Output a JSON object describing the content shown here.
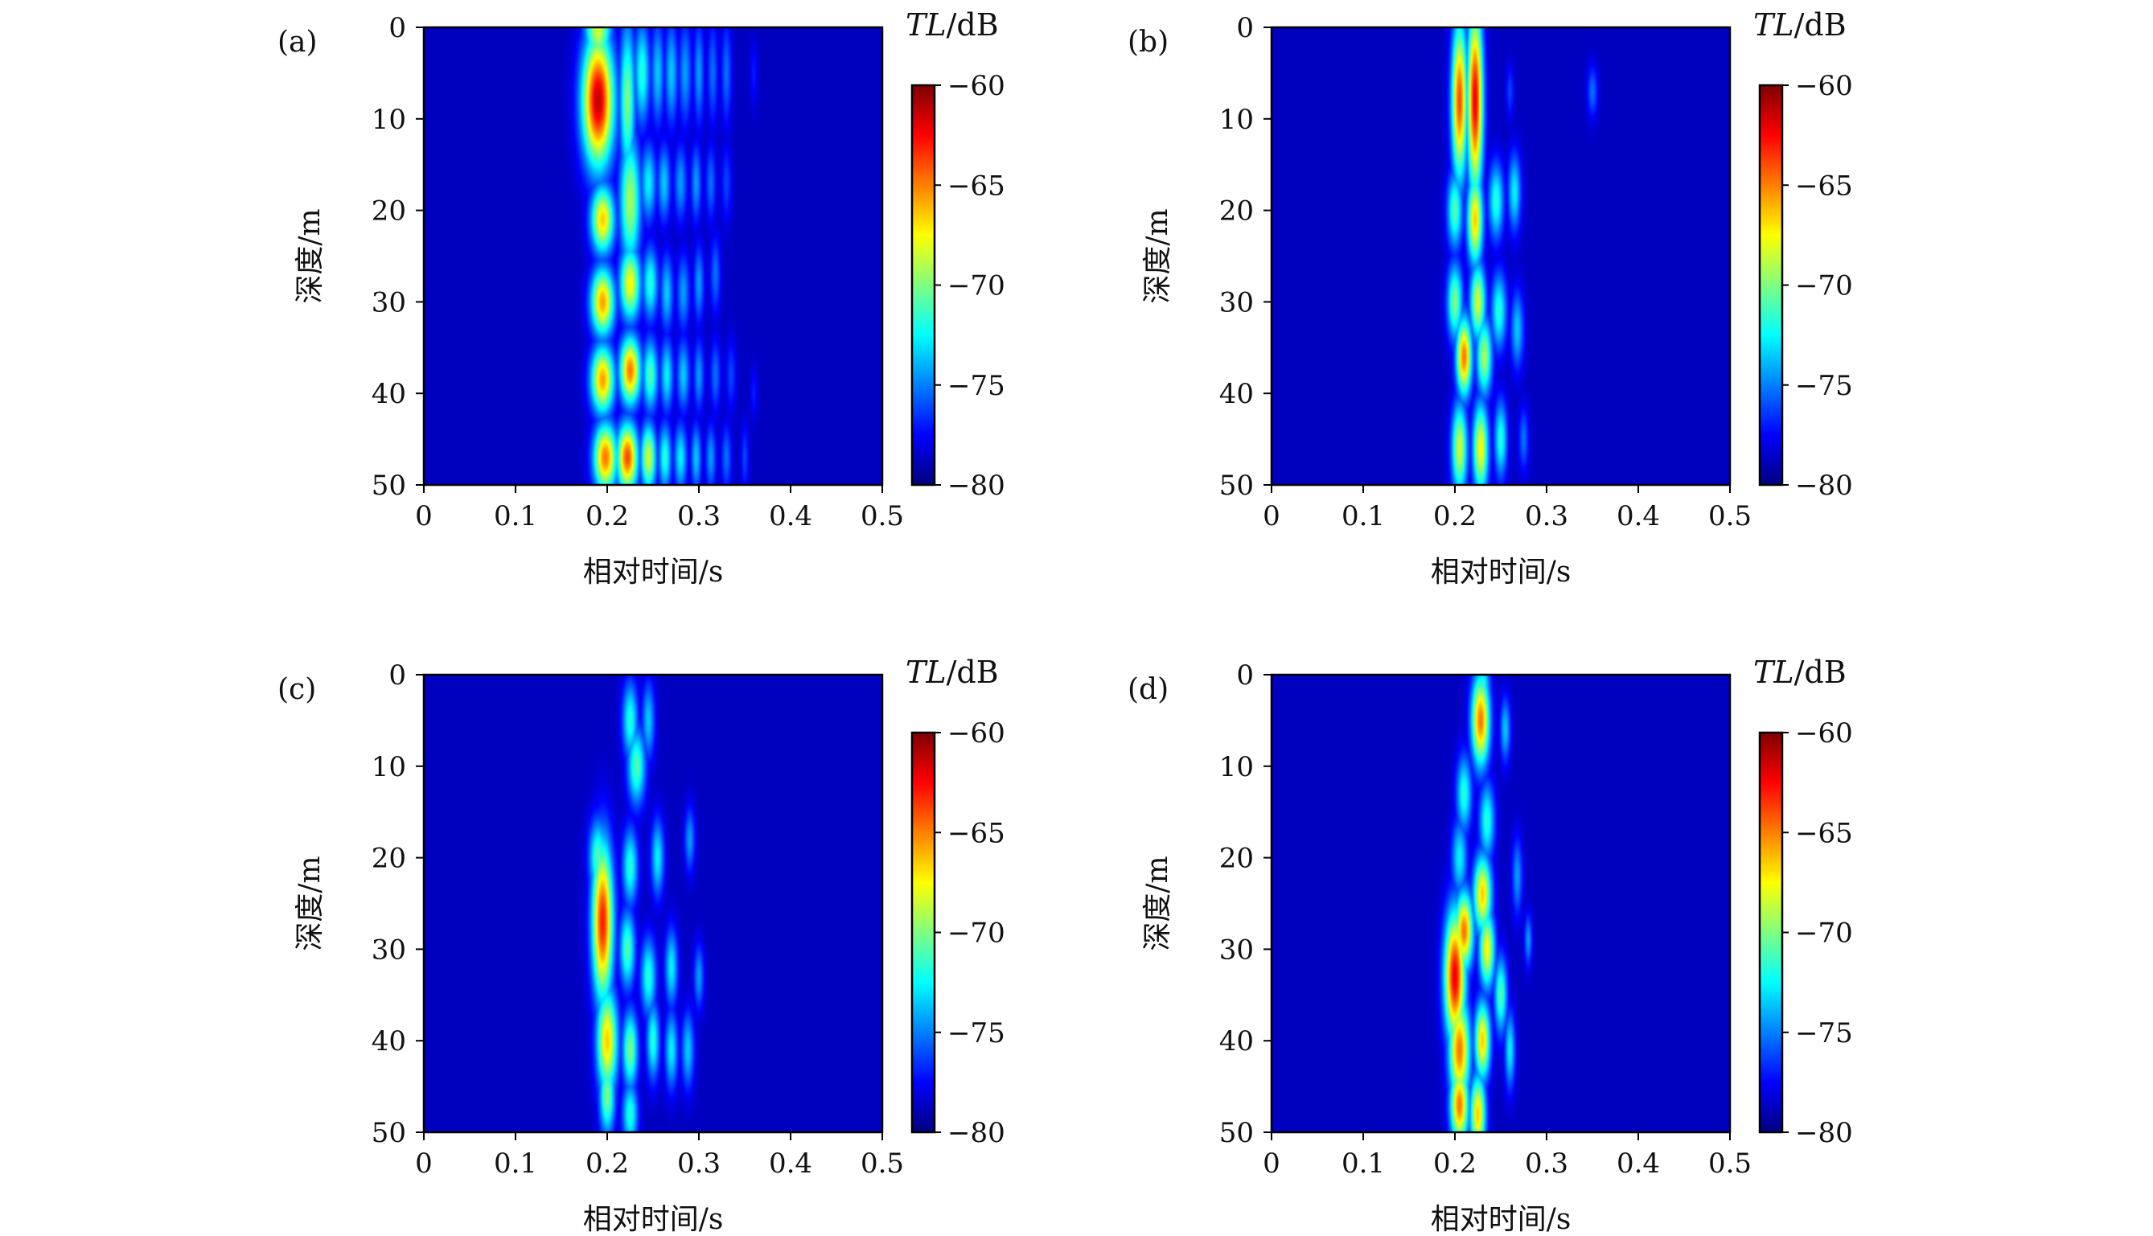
{
  "figure": {
    "panels": [
      {
        "id": "a",
        "label": "(a)"
      },
      {
        "id": "b",
        "label": "(b)"
      },
      {
        "id": "c",
        "label": "(c)"
      },
      {
        "id": "d",
        "label": "(d)"
      }
    ]
  },
  "chart_data": [
    {
      "type": "heatmap",
      "panel": "(a)",
      "xlabel": "相对时间/s",
      "ylabel": "深度/m",
      "xlim": [
        0,
        0.5
      ],
      "ylim": [
        50,
        0
      ],
      "xticks": [
        "0",
        "0.1",
        "0.2",
        "0.3",
        "0.4",
        "0.5"
      ],
      "yticks": [
        "0",
        "10",
        "20",
        "30",
        "40",
        "50"
      ],
      "colorbar": {
        "title_italic": "TL",
        "title_unit": "/dB",
        "range": [
          -80,
          -60
        ],
        "ticks": [
          "−60",
          "−65",
          "−70",
          "−75",
          "−80"
        ],
        "colormap": "jet"
      },
      "background": -80,
      "blobs": [
        {
          "t": 0.19,
          "z": 8,
          "st": 0.012,
          "sz": 5,
          "v": -60
        },
        {
          "t": 0.19,
          "z": 0,
          "st": 0.01,
          "sz": 3,
          "v": -68
        },
        {
          "t": 0.222,
          "z": 8,
          "st": 0.006,
          "sz": 6,
          "v": -70
        },
        {
          "t": 0.238,
          "z": 5,
          "st": 0.006,
          "sz": 4,
          "v": -72
        },
        {
          "t": 0.255,
          "z": 5,
          "st": 0.005,
          "sz": 4,
          "v": -74
        },
        {
          "t": 0.27,
          "z": 5,
          "st": 0.005,
          "sz": 4,
          "v": -74
        },
        {
          "t": 0.285,
          "z": 5,
          "st": 0.005,
          "sz": 4,
          "v": -75
        },
        {
          "t": 0.3,
          "z": 5,
          "st": 0.004,
          "sz": 4,
          "v": -75
        },
        {
          "t": 0.315,
          "z": 5,
          "st": 0.004,
          "sz": 4,
          "v": -76
        },
        {
          "t": 0.33,
          "z": 5,
          "st": 0.004,
          "sz": 4,
          "v": -76
        },
        {
          "t": 0.36,
          "z": 5,
          "st": 0.003,
          "sz": 2.5,
          "v": -78
        },
        {
          "t": 0.195,
          "z": 21,
          "st": 0.009,
          "sz": 2.6,
          "v": -66
        },
        {
          "t": 0.225,
          "z": 19,
          "st": 0.008,
          "sz": 5,
          "v": -69
        },
        {
          "t": 0.245,
          "z": 17,
          "st": 0.006,
          "sz": 3,
          "v": -73
        },
        {
          "t": 0.262,
          "z": 17,
          "st": 0.005,
          "sz": 3,
          "v": -74
        },
        {
          "t": 0.28,
          "z": 17,
          "st": 0.005,
          "sz": 3,
          "v": -75
        },
        {
          "t": 0.297,
          "z": 17,
          "st": 0.004,
          "sz": 3,
          "v": -75
        },
        {
          "t": 0.313,
          "z": 17,
          "st": 0.004,
          "sz": 3,
          "v": -76
        },
        {
          "t": 0.33,
          "z": 17,
          "st": 0.004,
          "sz": 3,
          "v": -77
        },
        {
          "t": 0.195,
          "z": 30,
          "st": 0.009,
          "sz": 2.6,
          "v": -65
        },
        {
          "t": 0.225,
          "z": 28,
          "st": 0.008,
          "sz": 2.8,
          "v": -67
        },
        {
          "t": 0.247,
          "z": 28,
          "st": 0.006,
          "sz": 2.8,
          "v": -72
        },
        {
          "t": 0.265,
          "z": 29,
          "st": 0.005,
          "sz": 3,
          "v": -74
        },
        {
          "t": 0.283,
          "z": 29,
          "st": 0.005,
          "sz": 3,
          "v": -75
        },
        {
          "t": 0.3,
          "z": 28,
          "st": 0.004,
          "sz": 3,
          "v": -75
        },
        {
          "t": 0.318,
          "z": 27,
          "st": 0.004,
          "sz": 3,
          "v": -76
        },
        {
          "t": 0.195,
          "z": 38.5,
          "st": 0.009,
          "sz": 2.6,
          "v": -65
        },
        {
          "t": 0.225,
          "z": 37.5,
          "st": 0.008,
          "sz": 2.6,
          "v": -64
        },
        {
          "t": 0.247,
          "z": 38,
          "st": 0.006,
          "sz": 2.8,
          "v": -71
        },
        {
          "t": 0.265,
          "z": 38,
          "st": 0.005,
          "sz": 2.8,
          "v": -73
        },
        {
          "t": 0.283,
          "z": 38,
          "st": 0.005,
          "sz": 2.8,
          "v": -74
        },
        {
          "t": 0.3,
          "z": 38,
          "st": 0.004,
          "sz": 2.8,
          "v": -75
        },
        {
          "t": 0.318,
          "z": 38,
          "st": 0.004,
          "sz": 2.8,
          "v": -76
        },
        {
          "t": 0.335,
          "z": 38,
          "st": 0.004,
          "sz": 2.8,
          "v": -77
        },
        {
          "t": 0.36,
          "z": 40,
          "st": 0.003,
          "sz": 2,
          "v": -78
        },
        {
          "t": 0.198,
          "z": 47,
          "st": 0.009,
          "sz": 2.6,
          "v": -64
        },
        {
          "t": 0.222,
          "z": 47,
          "st": 0.008,
          "sz": 2.6,
          "v": -63
        },
        {
          "t": 0.245,
          "z": 47,
          "st": 0.006,
          "sz": 2.6,
          "v": -68
        },
        {
          "t": 0.263,
          "z": 47,
          "st": 0.005,
          "sz": 2.6,
          "v": -72
        },
        {
          "t": 0.28,
          "z": 47,
          "st": 0.005,
          "sz": 2.6,
          "v": -73
        },
        {
          "t": 0.297,
          "z": 47,
          "st": 0.004,
          "sz": 2.6,
          "v": -74
        },
        {
          "t": 0.313,
          "z": 47,
          "st": 0.004,
          "sz": 2.6,
          "v": -75
        },
        {
          "t": 0.33,
          "z": 47,
          "st": 0.004,
          "sz": 2.6,
          "v": -76
        },
        {
          "t": 0.35,
          "z": 47,
          "st": 0.003,
          "sz": 2.6,
          "v": -77
        }
      ]
    },
    {
      "type": "heatmap",
      "panel": "(b)",
      "xlabel": "相对时间/s",
      "ylabel": "深度/m",
      "xlim": [
        0,
        0.5
      ],
      "ylim": [
        50,
        0
      ],
      "xticks": [
        "0",
        "0.1",
        "0.2",
        "0.3",
        "0.4",
        "0.5"
      ],
      "yticks": [
        "0",
        "10",
        "20",
        "30",
        "40",
        "50"
      ],
      "colorbar": {
        "title_italic": "TL",
        "title_unit": "/dB",
        "range": [
          -80,
          -60
        ],
        "ticks": [
          "−60",
          "−65",
          "−70",
          "−75",
          "−80"
        ],
        "colormap": "jet"
      },
      "background": -80,
      "blobs": [
        {
          "t": 0.205,
          "z": 8,
          "st": 0.006,
          "sz": 6,
          "v": -63
        },
        {
          "t": 0.222,
          "z": 8,
          "st": 0.006,
          "sz": 7,
          "v": -61
        },
        {
          "t": 0.2,
          "z": 20,
          "st": 0.006,
          "sz": 3,
          "v": -71
        },
        {
          "t": 0.222,
          "z": 21,
          "st": 0.006,
          "sz": 3.5,
          "v": -66
        },
        {
          "t": 0.245,
          "z": 19,
          "st": 0.006,
          "sz": 3,
          "v": -72
        },
        {
          "t": 0.265,
          "z": 18,
          "st": 0.005,
          "sz": 3,
          "v": -73
        },
        {
          "t": 0.2,
          "z": 30,
          "st": 0.006,
          "sz": 3,
          "v": -70
        },
        {
          "t": 0.225,
          "z": 30,
          "st": 0.006,
          "sz": 3,
          "v": -68
        },
        {
          "t": 0.248,
          "z": 31,
          "st": 0.006,
          "sz": 3,
          "v": -72
        },
        {
          "t": 0.268,
          "z": 33,
          "st": 0.005,
          "sz": 3,
          "v": -74
        },
        {
          "t": 0.21,
          "z": 36,
          "st": 0.006,
          "sz": 3,
          "v": -64
        },
        {
          "t": 0.232,
          "z": 36,
          "st": 0.006,
          "sz": 3,
          "v": -69
        },
        {
          "t": 0.205,
          "z": 46,
          "st": 0.006,
          "sz": 3.5,
          "v": -68
        },
        {
          "t": 0.228,
          "z": 46,
          "st": 0.006,
          "sz": 3.5,
          "v": -67
        },
        {
          "t": 0.25,
          "z": 45,
          "st": 0.005,
          "sz": 3,
          "v": -72
        },
        {
          "t": 0.275,
          "z": 45,
          "st": 0.004,
          "sz": 2.5,
          "v": -76
        },
        {
          "t": 0.35,
          "z": 7,
          "st": 0.004,
          "sz": 2,
          "v": -76
        },
        {
          "t": 0.26,
          "z": 7,
          "st": 0.003,
          "sz": 2,
          "v": -77
        }
      ]
    },
    {
      "type": "heatmap",
      "panel": "(c)",
      "xlabel": "相对时间/s",
      "ylabel": "深度/m",
      "xlim": [
        0,
        0.5
      ],
      "ylim": [
        50,
        0
      ],
      "xticks": [
        "0",
        "0.1",
        "0.2",
        "0.3",
        "0.4",
        "0.5"
      ],
      "yticks": [
        "0",
        "10",
        "20",
        "30",
        "40",
        "50"
      ],
      "colorbar": {
        "title_italic": "TL",
        "title_unit": "/dB",
        "range": [
          -80,
          -60
        ],
        "ticks": [
          "−60",
          "−65",
          "−70",
          "−75",
          "−80"
        ],
        "colormap": "jet"
      },
      "background": -80,
      "blobs": [
        {
          "t": 0.195,
          "z": 27,
          "st": 0.008,
          "sz": 6,
          "v": -62
        },
        {
          "t": 0.2,
          "z": 40,
          "st": 0.008,
          "sz": 4,
          "v": -66
        },
        {
          "t": 0.19,
          "z": 20,
          "st": 0.007,
          "sz": 3,
          "v": -71
        },
        {
          "t": 0.2,
          "z": 46,
          "st": 0.006,
          "sz": 3,
          "v": -70
        },
        {
          "t": 0.225,
          "z": 5,
          "st": 0.006,
          "sz": 3,
          "v": -72
        },
        {
          "t": 0.232,
          "z": 10,
          "st": 0.007,
          "sz": 3,
          "v": -71
        },
        {
          "t": 0.245,
          "z": 5,
          "st": 0.005,
          "sz": 3,
          "v": -74
        },
        {
          "t": 0.225,
          "z": 21,
          "st": 0.006,
          "sz": 3,
          "v": -72
        },
        {
          "t": 0.255,
          "z": 20,
          "st": 0.005,
          "sz": 3,
          "v": -73
        },
        {
          "t": 0.222,
          "z": 30,
          "st": 0.006,
          "sz": 3,
          "v": -71
        },
        {
          "t": 0.245,
          "z": 33,
          "st": 0.006,
          "sz": 3,
          "v": -72
        },
        {
          "t": 0.27,
          "z": 32,
          "st": 0.005,
          "sz": 3,
          "v": -73
        },
        {
          "t": 0.3,
          "z": 33,
          "st": 0.004,
          "sz": 2.5,
          "v": -75
        },
        {
          "t": 0.225,
          "z": 41,
          "st": 0.006,
          "sz": 3,
          "v": -70
        },
        {
          "t": 0.25,
          "z": 40,
          "st": 0.005,
          "sz": 3,
          "v": -72
        },
        {
          "t": 0.27,
          "z": 41,
          "st": 0.005,
          "sz": 3,
          "v": -73
        },
        {
          "t": 0.288,
          "z": 41,
          "st": 0.005,
          "sz": 3,
          "v": -74
        },
        {
          "t": 0.29,
          "z": 18,
          "st": 0.004,
          "sz": 2.5,
          "v": -75
        },
        {
          "t": 0.225,
          "z": 48,
          "st": 0.006,
          "sz": 2.5,
          "v": -72
        }
      ]
    },
    {
      "type": "heatmap",
      "panel": "(d)",
      "xlabel": "相对时间/s",
      "ylabel": "深度/m",
      "xlim": [
        0,
        0.5
      ],
      "ylim": [
        50,
        0
      ],
      "xticks": [
        "0",
        "0.1",
        "0.2",
        "0.3",
        "0.4",
        "0.5"
      ],
      "yticks": [
        "0",
        "10",
        "20",
        "30",
        "40",
        "50"
      ],
      "colorbar": {
        "title_italic": "TL",
        "title_unit": "/dB",
        "range": [
          -80,
          -60
        ],
        "ticks": [
          "−60",
          "−65",
          "−70",
          "−75",
          "−80"
        ],
        "colormap": "jet"
      },
      "background": -80,
      "blobs": [
        {
          "t": 0.228,
          "z": 5,
          "st": 0.007,
          "sz": 3.5,
          "v": -64
        },
        {
          "t": 0.23,
          "z": 1,
          "st": 0.006,
          "sz": 1.5,
          "v": -72
        },
        {
          "t": 0.255,
          "z": 6,
          "st": 0.004,
          "sz": 2.5,
          "v": -74
        },
        {
          "t": 0.21,
          "z": 13,
          "st": 0.006,
          "sz": 3,
          "v": -72
        },
        {
          "t": 0.235,
          "z": 16,
          "st": 0.006,
          "sz": 3,
          "v": -72
        },
        {
          "t": 0.205,
          "z": 20,
          "st": 0.006,
          "sz": 3,
          "v": -73
        },
        {
          "t": 0.23,
          "z": 24,
          "st": 0.007,
          "sz": 3,
          "v": -66
        },
        {
          "t": 0.2,
          "z": 33,
          "st": 0.008,
          "sz": 5,
          "v": -61
        },
        {
          "t": 0.21,
          "z": 28,
          "st": 0.007,
          "sz": 3,
          "v": -64
        },
        {
          "t": 0.235,
          "z": 30,
          "st": 0.006,
          "sz": 3,
          "v": -67
        },
        {
          "t": 0.205,
          "z": 41,
          "st": 0.008,
          "sz": 4,
          "v": -64
        },
        {
          "t": 0.23,
          "z": 40,
          "st": 0.006,
          "sz": 3,
          "v": -66
        },
        {
          "t": 0.25,
          "z": 35,
          "st": 0.005,
          "sz": 3,
          "v": -71
        },
        {
          "t": 0.26,
          "z": 41,
          "st": 0.004,
          "sz": 3,
          "v": -73
        },
        {
          "t": 0.205,
          "z": 47,
          "st": 0.007,
          "sz": 3,
          "v": -64
        },
        {
          "t": 0.225,
          "z": 48,
          "st": 0.006,
          "sz": 3,
          "v": -66
        },
        {
          "t": 0.28,
          "z": 29,
          "st": 0.003,
          "sz": 2,
          "v": -75
        },
        {
          "t": 0.268,
          "z": 22,
          "st": 0.004,
          "sz": 3,
          "v": -75
        }
      ]
    }
  ]
}
